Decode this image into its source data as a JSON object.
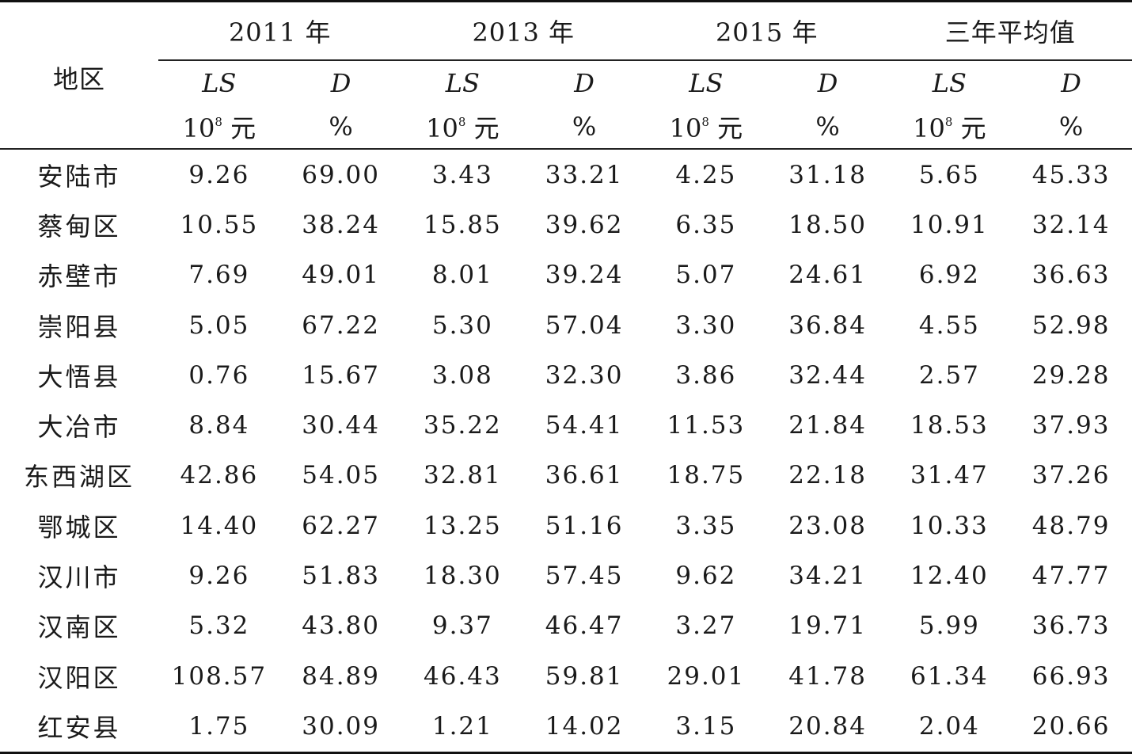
{
  "table": {
    "region_header": "地区",
    "groups": [
      {
        "label": "2011 年"
      },
      {
        "label": "2013 年"
      },
      {
        "label": "2015 年"
      },
      {
        "label": "三年平均值"
      }
    ],
    "var_ls": "LS",
    "var_d": "D",
    "unit_ls_base": "10",
    "unit_ls_exp": "8",
    "unit_ls_suffix": "元",
    "unit_d": "%",
    "rows": [
      {
        "region": "安陆市",
        "values": [
          "9.26",
          "69.00",
          "3.43",
          "33.21",
          "4.25",
          "31.18",
          "5.65",
          "45.33"
        ]
      },
      {
        "region": "蔡甸区",
        "values": [
          "10.55",
          "38.24",
          "15.85",
          "39.62",
          "6.35",
          "18.50",
          "10.91",
          "32.14"
        ]
      },
      {
        "region": "赤壁市",
        "values": [
          "7.69",
          "49.01",
          "8.01",
          "39.24",
          "5.07",
          "24.61",
          "6.92",
          "36.63"
        ]
      },
      {
        "region": "崇阳县",
        "values": [
          "5.05",
          "67.22",
          "5.30",
          "57.04",
          "3.30",
          "36.84",
          "4.55",
          "52.98"
        ]
      },
      {
        "region": "大悟县",
        "values": [
          "0.76",
          "15.67",
          "3.08",
          "32.30",
          "3.86",
          "32.44",
          "2.57",
          "29.28"
        ]
      },
      {
        "region": "大冶市",
        "values": [
          "8.84",
          "30.44",
          "35.22",
          "54.41",
          "11.53",
          "21.84",
          "18.53",
          "37.93"
        ]
      },
      {
        "region": "东西湖区",
        "values": [
          "42.86",
          "54.05",
          "32.81",
          "36.61",
          "18.75",
          "22.18",
          "31.47",
          "37.26"
        ]
      },
      {
        "region": "鄂城区",
        "values": [
          "14.40",
          "62.27",
          "13.25",
          "51.16",
          "3.35",
          "23.08",
          "10.33",
          "48.79"
        ]
      },
      {
        "region": "汉川市",
        "values": [
          "9.26",
          "51.83",
          "18.30",
          "57.45",
          "9.62",
          "34.21",
          "12.40",
          "47.77"
        ]
      },
      {
        "region": "汉南区",
        "values": [
          "5.32",
          "43.80",
          "9.37",
          "46.47",
          "3.27",
          "19.71",
          "5.99",
          "36.73"
        ]
      },
      {
        "region": "汉阳区",
        "values": [
          "108.57",
          "84.89",
          "46.43",
          "59.81",
          "29.01",
          "41.78",
          "61.34",
          "66.93"
        ]
      },
      {
        "region": "红安县",
        "values": [
          "1.75",
          "30.09",
          "1.21",
          "14.02",
          "3.15",
          "20.84",
          "2.04",
          "20.66"
        ]
      }
    ]
  }
}
